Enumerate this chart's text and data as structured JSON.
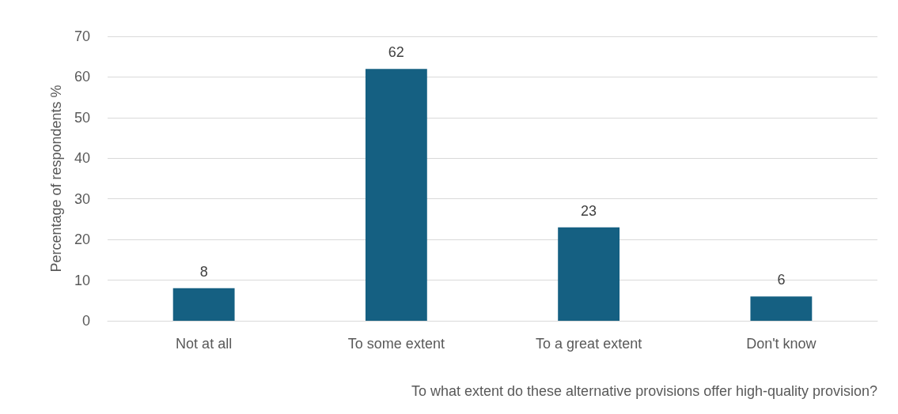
{
  "chart_data": {
    "type": "bar",
    "xlabel": "To what extent do these alternative provisions offer high-quality provision?",
    "ylabel": "Percentage of respondents %",
    "categories": [
      "Not at all",
      "To some extent",
      "To a great extent",
      "Don't know"
    ],
    "values": [
      8,
      62,
      23,
      6
    ],
    "color": "#156082",
    "ylim": [
      0,
      70
    ],
    "yticks": [
      0,
      10,
      20,
      30,
      40,
      50,
      60,
      70
    ],
    "grid": "y",
    "data_labels": true
  }
}
